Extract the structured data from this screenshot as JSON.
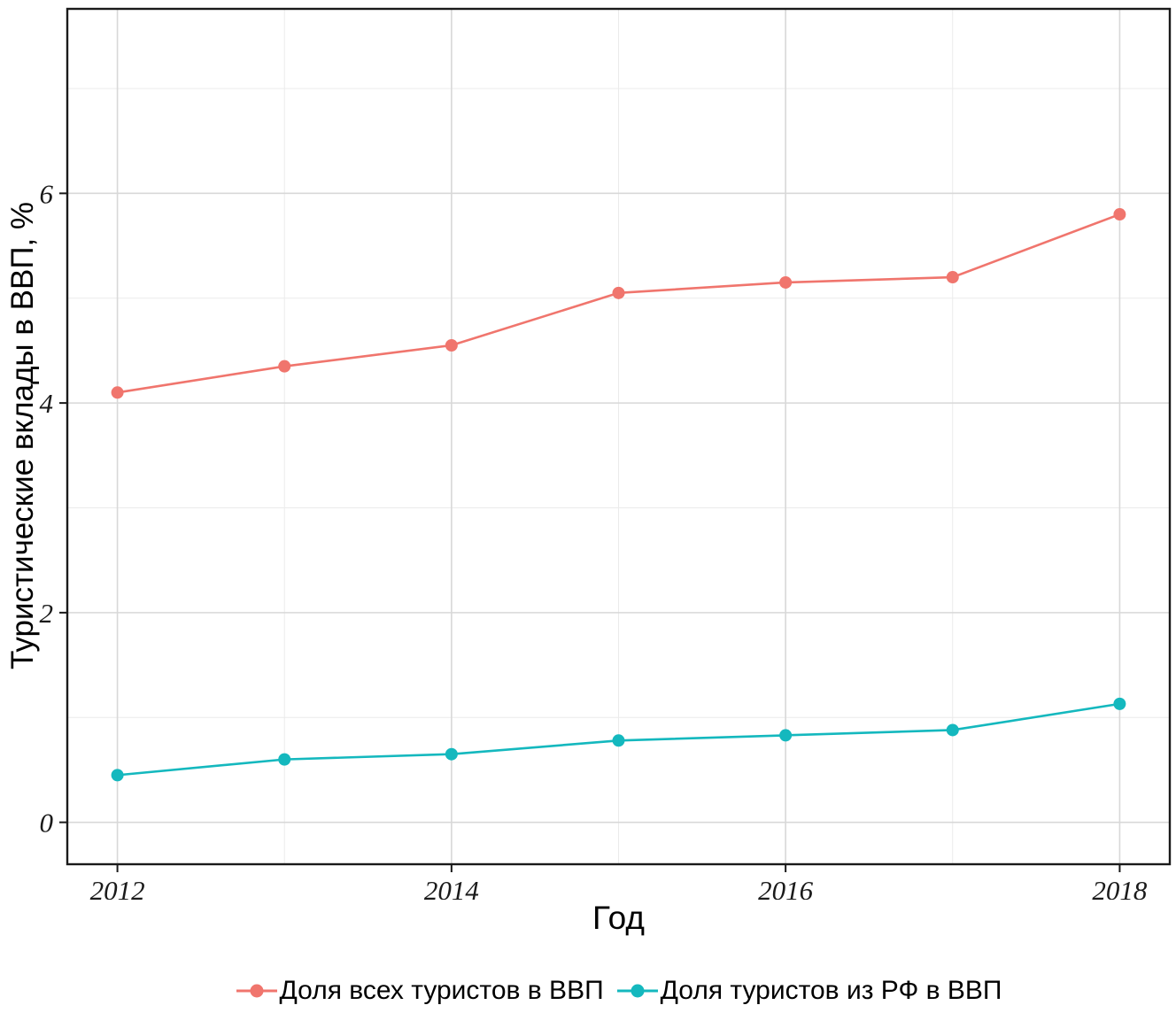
{
  "chart_data": {
    "type": "line",
    "title": "",
    "xlabel": "Год",
    "ylabel": "Туристические вклады в ВВП, %",
    "x": [
      2012,
      2013,
      2014,
      2015,
      2016,
      2017,
      2018
    ],
    "series": [
      {
        "name": "Доля всех туристов в ВВП",
        "color": "#F0756D",
        "values": [
          4.1,
          4.35,
          4.55,
          5.05,
          5.15,
          5.2,
          5.8
        ]
      },
      {
        "name": "Доля туристов из РФ в ВВП",
        "color": "#14B8BE",
        "values": [
          0.45,
          0.6,
          0.65,
          0.78,
          0.83,
          0.88,
          1.13
        ]
      }
    ],
    "x_ticks": [
      2012,
      2014,
      2016,
      2018
    ],
    "y_ticks": [
      0,
      2,
      4,
      6
    ],
    "x_minor": [
      2013,
      2015,
      2017
    ],
    "y_minor": [
      1,
      3,
      5,
      7
    ],
    "xlim": [
      2011.7,
      2018.3
    ],
    "ylim": [
      -0.4,
      7.76
    ],
    "grid": true,
    "legend_position": "bottom"
  }
}
